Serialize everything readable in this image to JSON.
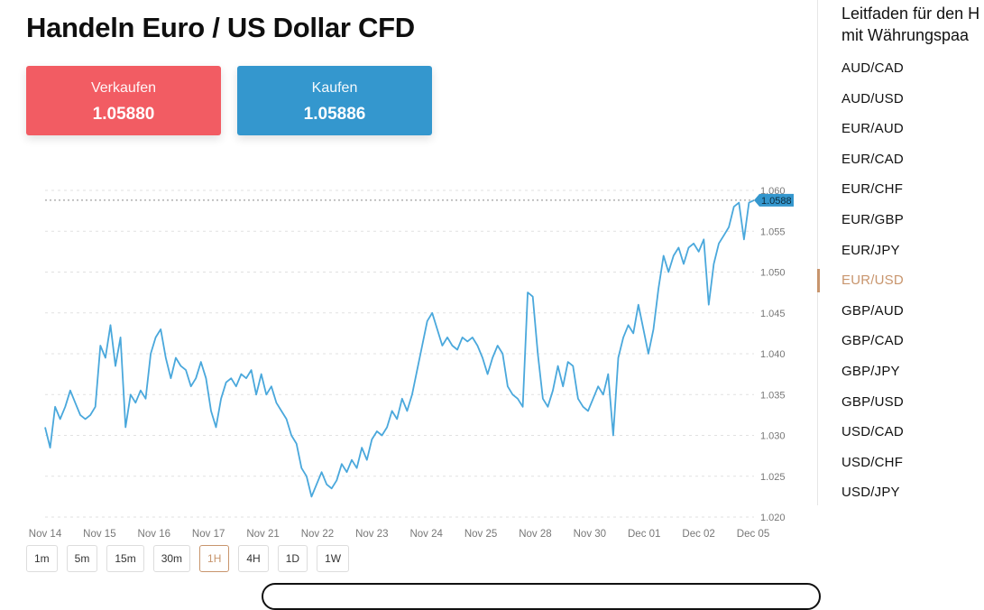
{
  "page": {
    "title": "Handeln Euro / US Dollar CFD"
  },
  "trade": {
    "sell": {
      "label": "Verkaufen",
      "price": "1.05880"
    },
    "buy": {
      "label": "Kaufen",
      "price": "1.05886"
    }
  },
  "timeframes": [
    "1m",
    "5m",
    "15m",
    "30m",
    "1H",
    "4H",
    "1D",
    "1W"
  ],
  "active_timeframe": "1H",
  "sidebar": {
    "title_lines": [
      "Leitfaden für den H",
      "mit Währungspaa"
    ],
    "pairs": [
      "AUD/CAD",
      "AUD/USD",
      "EUR/AUD",
      "EUR/CAD",
      "EUR/CHF",
      "EUR/GBP",
      "EUR/JPY",
      "EUR/USD",
      "GBP/AUD",
      "GBP/CAD",
      "GBP/JPY",
      "GBP/USD",
      "USD/CAD",
      "USD/CHF",
      "USD/JPY"
    ],
    "active_pair": "EUR/USD"
  },
  "colors": {
    "sell": "#f25c63",
    "buy": "#3497ce",
    "line": "#4aa8dc",
    "accent": "#c8956d"
  },
  "chart_data": {
    "type": "line",
    "title": "",
    "xlabel": "",
    "ylabel": "",
    "ylim": [
      1.02,
      1.06
    ],
    "yticks": [
      "1.020",
      "1.025",
      "1.030",
      "1.035",
      "1.040",
      "1.045",
      "1.050",
      "1.055",
      "1.060"
    ],
    "xticks": [
      "Nov 14",
      "Nov 15",
      "Nov 16",
      "Nov 17",
      "Nov 21",
      "Nov 22",
      "Nov 23",
      "Nov 24",
      "Nov 25",
      "Nov 28",
      "Nov 30",
      "Dec 01",
      "Dec 02",
      "Dec 05"
    ],
    "grid": true,
    "current_price_label": "1.0588",
    "current_price": 1.0588,
    "series": [
      {
        "values": [
          1.031,
          1.0285,
          1.0335,
          1.032,
          1.0335,
          1.0355,
          1.034,
          1.0325,
          1.032,
          1.0325,
          1.0335,
          1.041,
          1.0395,
          1.0435,
          1.0385,
          1.042,
          1.031,
          1.035,
          1.034,
          1.0355,
          1.0345,
          1.04,
          1.042,
          1.043,
          1.0395,
          1.037,
          1.0395,
          1.0385,
          1.038,
          1.036,
          1.037,
          1.039,
          1.037,
          1.033,
          1.031,
          1.0345,
          1.0365,
          1.037,
          1.036,
          1.0375,
          1.037,
          1.038,
          1.035,
          1.0375,
          1.035,
          1.036,
          1.034,
          1.033,
          1.032,
          1.03,
          1.029,
          1.026,
          1.025,
          1.0225,
          1.024,
          1.0255,
          1.024,
          1.0235,
          1.0245,
          1.0265,
          1.0255,
          1.027,
          1.026,
          1.0285,
          1.027,
          1.0295,
          1.0305,
          1.03,
          1.031,
          1.033,
          1.032,
          1.0345,
          1.033,
          1.035,
          1.038,
          1.041,
          1.044,
          1.045,
          1.043,
          1.041,
          1.042,
          1.041,
          1.0405,
          1.042,
          1.0415,
          1.042,
          1.041,
          1.0395,
          1.0375,
          1.0395,
          1.041,
          1.04,
          1.036,
          1.035,
          1.0345,
          1.0335,
          1.0475,
          1.047,
          1.04,
          1.0345,
          1.0335,
          1.0355,
          1.0385,
          1.036,
          1.039,
          1.0385,
          1.0345,
          1.0335,
          1.033,
          1.0345,
          1.036,
          1.035,
          1.0375,
          1.03,
          1.0395,
          1.042,
          1.0435,
          1.0425,
          1.046,
          1.043,
          1.04,
          1.043,
          1.048,
          1.052,
          1.05,
          1.052,
          1.053,
          1.051,
          1.053,
          1.0535,
          1.0525,
          1.054,
          1.046,
          1.051,
          1.0535,
          1.0545,
          1.0555,
          1.058,
          1.0585,
          1.054,
          1.0585,
          1.0588
        ]
      }
    ]
  }
}
